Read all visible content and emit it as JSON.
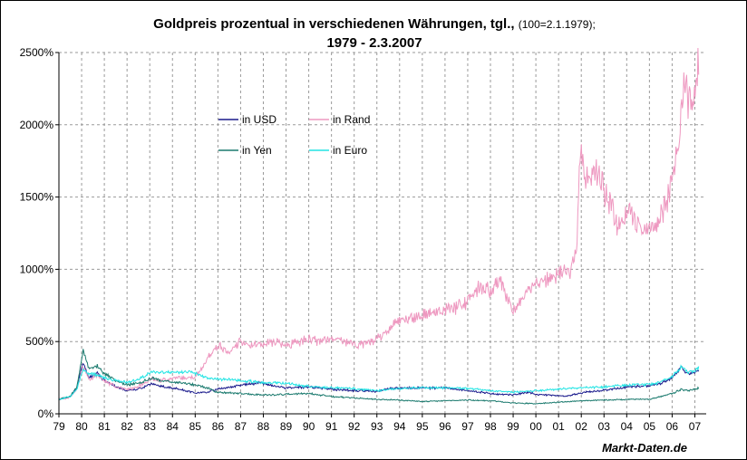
{
  "chart_data": {
    "type": "line",
    "title_main": "Goldpreis prozentual in verschiedenen Währungen, tgl.,",
    "title_note": "(100=2.1.1979);",
    "subtitle": "1979 - 2.3.2007",
    "xlabel": "",
    "ylabel": "",
    "xlim": [
      1979.0,
      2007.5
    ],
    "ylim": [
      0,
      2500
    ],
    "y_ticks": [
      "0%",
      "500%",
      "1000%",
      "1500%",
      "2000%",
      "2500%"
    ],
    "y_tick_values": [
      0,
      500,
      1000,
      1500,
      2000,
      2500
    ],
    "x_ticks": [
      "79",
      "80",
      "81",
      "82",
      "83",
      "84",
      "85",
      "86",
      "87",
      "88",
      "89",
      "90",
      "91",
      "92",
      "93",
      "94",
      "95",
      "96",
      "97",
      "98",
      "99",
      "00",
      "01",
      "02",
      "03",
      "04",
      "05",
      "06",
      "07"
    ],
    "grid": true,
    "legend_position": "upper-left inside plot",
    "series": [
      {
        "name": "in USD",
        "color": "#1a1a8c",
        "x": [
          1979.0,
          1979.5,
          1979.8,
          1980.05,
          1980.3,
          1980.7,
          1981.0,
          1981.5,
          1982.0,
          1982.5,
          1983.1,
          1983.5,
          1984.0,
          1985.0,
          1985.5,
          1986.0,
          1987.0,
          1987.9,
          1988.5,
          1989.0,
          1990.0,
          1991.0,
          1992.0,
          1993.0,
          1993.5,
          1994.0,
          1995.0,
          1996.0,
          1997.0,
          1998.0,
          1999.0,
          1999.7,
          2000.0,
          2001.0,
          2001.3,
          2002.0,
          2003.0,
          2004.0,
          2005.0,
          2005.5,
          2006.0,
          2006.4,
          2006.7,
          2007.0,
          2007.17
        ],
        "values": [
          100,
          120,
          180,
          360,
          250,
          280,
          230,
          190,
          160,
          170,
          210,
          190,
          180,
          145,
          150,
          170,
          200,
          215,
          190,
          180,
          185,
          170,
          160,
          155,
          175,
          180,
          180,
          180,
          160,
          140,
          130,
          150,
          135,
          125,
          120,
          145,
          165,
          185,
          195,
          210,
          250,
          320,
          280,
          285,
          300
        ]
      },
      {
        "name": "in Rand",
        "color": "#ee98c0",
        "x": [
          1979.0,
          1979.5,
          1979.8,
          1980.05,
          1980.3,
          1980.7,
          1981.0,
          1981.5,
          1982.0,
          1982.5,
          1983.1,
          1983.5,
          1984.0,
          1984.5,
          1985.0,
          1985.3,
          1985.6,
          1986.0,
          1986.5,
          1987.0,
          1987.5,
          1988.0,
          1988.5,
          1989.0,
          1989.5,
          1990.0,
          1990.5,
          1991.0,
          1991.5,
          1992.0,
          1992.5,
          1993.0,
          1993.5,
          1994.0,
          1994.5,
          1995.0,
          1995.5,
          1996.0,
          1996.5,
          1997.0,
          1997.5,
          1998.0,
          1998.4,
          1998.8,
          1999.0,
          1999.5,
          2000.0,
          2000.5,
          2001.0,
          2001.5,
          2001.8,
          2001.95,
          2002.1,
          2002.4,
          2002.7,
          2003.0,
          2003.3,
          2003.6,
          2004.0,
          2004.3,
          2004.6,
          2005.0,
          2005.3,
          2005.7,
          2006.0,
          2006.3,
          2006.5,
          2006.8,
          2007.0,
          2007.17
        ],
        "values": [
          100,
          115,
          170,
          330,
          240,
          270,
          230,
          190,
          170,
          190,
          240,
          230,
          240,
          250,
          250,
          320,
          400,
          470,
          430,
          500,
          470,
          480,
          500,
          480,
          490,
          520,
          500,
          520,
          500,
          480,
          490,
          520,
          570,
          650,
          660,
          680,
          700,
          720,
          740,
          780,
          880,
          850,
          920,
          780,
          700,
          820,
          900,
          940,
          960,
          1000,
          1100,
          1800,
          1700,
          1620,
          1680,
          1550,
          1450,
          1300,
          1380,
          1350,
          1280,
          1280,
          1300,
          1450,
          1600,
          1900,
          2300,
          2150,
          2200,
          2450
        ]
      },
      {
        "name": "in Yen",
        "color": "#1b7a6e",
        "x": [
          1979.0,
          1979.5,
          1979.8,
          1980.05,
          1980.3,
          1980.7,
          1981.0,
          1981.5,
          1982.0,
          1982.5,
          1983.1,
          1983.5,
          1984.0,
          1985.0,
          1985.5,
          1986.0,
          1987.0,
          1988.0,
          1989.0,
          1990.0,
          1991.0,
          1992.0,
          1993.0,
          1994.0,
          1995.0,
          1996.0,
          1997.0,
          1998.0,
          1999.0,
          2000.0,
          2001.0,
          2002.0,
          2003.0,
          2004.0,
          2005.0,
          2005.5,
          2006.0,
          2006.4,
          2006.7,
          2007.0,
          2007.17
        ],
        "values": [
          100,
          120,
          190,
          440,
          320,
          330,
          280,
          230,
          200,
          210,
          250,
          230,
          220,
          200,
          180,
          150,
          140,
          130,
          135,
          140,
          120,
          110,
          100,
          95,
          85,
          90,
          95,
          90,
          75,
          70,
          80,
          90,
          95,
          100,
          100,
          120,
          140,
          170,
          160,
          170,
          180
        ]
      },
      {
        "name": "in Euro",
        "color": "#22e4e4",
        "x": [
          1979.0,
          1979.5,
          1979.8,
          1980.05,
          1980.3,
          1980.7,
          1981.0,
          1981.5,
          1982.0,
          1982.5,
          1983.1,
          1983.5,
          1984.0,
          1984.5,
          1985.0,
          1985.5,
          1986.0,
          1987.0,
          1988.0,
          1989.0,
          1990.0,
          1991.0,
          1992.0,
          1993.0,
          1994.0,
          1995.0,
          1996.0,
          1997.0,
          1998.0,
          1999.0,
          2000.0,
          2001.0,
          2002.0,
          2003.0,
          2004.0,
          2005.0,
          2005.5,
          2006.0,
          2006.4,
          2006.7,
          2007.0,
          2007.17
        ],
        "values": [
          100,
          120,
          175,
          310,
          280,
          270,
          250,
          230,
          220,
          240,
          290,
          290,
          285,
          290,
          280,
          250,
          240,
          230,
          215,
          210,
          190,
          180,
          175,
          160,
          175,
          180,
          180,
          175,
          160,
          150,
          160,
          170,
          180,
          185,
          200,
          205,
          220,
          260,
          320,
          290,
          300,
          320
        ]
      }
    ]
  }
}
